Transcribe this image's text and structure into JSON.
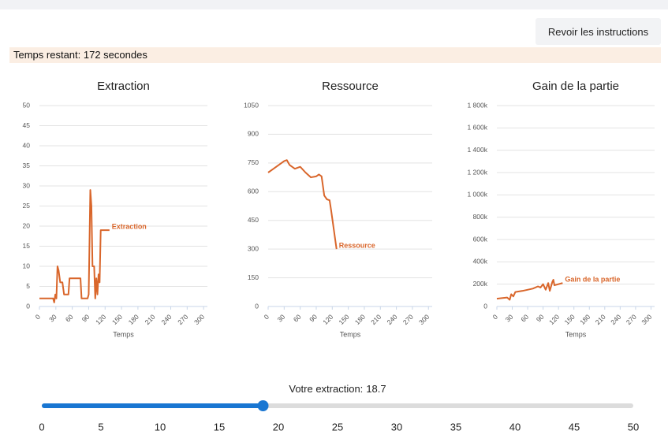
{
  "header": {
    "button": "Revoir les instructions",
    "timer": "Temps restant: 172 secondes"
  },
  "chart_data": [
    {
      "type": "line",
      "title": "Extraction",
      "xlabel": "Temps",
      "x": [
        0,
        25,
        27,
        29,
        31,
        33,
        35,
        38,
        42,
        45,
        53,
        55,
        75,
        77,
        88,
        90,
        93,
        95,
        97,
        100,
        102,
        104,
        106,
        108,
        110,
        112,
        128
      ],
      "series": [
        {
          "name": "Extraction",
          "color": "#d9662b",
          "values": [
            2,
            2,
            1,
            3,
            2,
            10,
            9,
            6,
            6,
            3,
            3,
            7,
            7,
            2,
            2,
            3,
            29,
            25,
            10,
            10,
            2,
            7,
            3,
            8,
            6,
            19,
            19
          ]
        }
      ],
      "xlim": [
        0,
        307
      ],
      "xticks": [
        0,
        30,
        60,
        90,
        120,
        150,
        180,
        210,
        240,
        270,
        300
      ],
      "ylim": [
        0,
        50
      ],
      "yticks": [
        0,
        5,
        10,
        15,
        20,
        25,
        30,
        35,
        40,
        45,
        50
      ],
      "grid": true
    },
    {
      "type": "line",
      "title": "Ressource",
      "xlabel": "Temps",
      "x": [
        0,
        10,
        20,
        30,
        35,
        40,
        50,
        60,
        70,
        80,
        90,
        95,
        100,
        105,
        110,
        115,
        118,
        128
      ],
      "series": [
        {
          "name": "Ressource",
          "color": "#d9662b",
          "values": [
            700,
            720,
            740,
            760,
            765,
            740,
            720,
            730,
            700,
            675,
            680,
            690,
            680,
            580,
            560,
            555,
            500,
            300
          ]
        }
      ],
      "xlim": [
        0,
        307
      ],
      "xticks": [
        0,
        30,
        60,
        90,
        120,
        150,
        180,
        210,
        240,
        270,
        300
      ],
      "ylim": [
        0,
        1050
      ],
      "yticks": [
        0,
        150,
        300,
        450,
        600,
        750,
        900,
        1050
      ],
      "grid": true
    },
    {
      "type": "line",
      "title": "Gain de la partie",
      "xlabel": "Temps",
      "x": [
        0,
        20,
        25,
        28,
        32,
        36,
        50,
        70,
        80,
        85,
        90,
        95,
        100,
        103,
        108,
        110,
        112,
        128
      ],
      "series": [
        {
          "name": "Gain de la partie",
          "color": "#d9662b",
          "values": [
            70000,
            80000,
            60000,
            110000,
            90000,
            130000,
            140000,
            160000,
            180000,
            170000,
            200000,
            150000,
            210000,
            140000,
            220000,
            240000,
            190000,
            210000
          ]
        }
      ],
      "xlim": [
        0,
        307
      ],
      "xticks": [
        0,
        30,
        60,
        90,
        120,
        150,
        180,
        210,
        240,
        270,
        300
      ],
      "ylim": [
        0,
        1800000
      ],
      "yticks": [
        0,
        {
          "value": 200000,
          "label": "200k"
        },
        {
          "value": 400000,
          "label": "400k"
        },
        {
          "value": 600000,
          "label": "600k"
        },
        {
          "value": 800000,
          "label": "800k"
        },
        {
          "value": 1000000,
          "label": "1 000k"
        },
        {
          "value": 1200000,
          "label": "1 200k"
        },
        {
          "value": 1400000,
          "label": "1 400k"
        },
        {
          "value": 1600000,
          "label": "1 600k"
        },
        {
          "value": 1800000,
          "label": "1 800k"
        }
      ],
      "grid": true
    }
  ],
  "slider": {
    "label": "Votre extraction:",
    "value": 18.7,
    "xlim": [
      0,
      50
    ],
    "xticks": [
      0,
      5,
      10,
      15,
      20,
      25,
      30,
      35,
      40,
      45,
      50
    ]
  }
}
